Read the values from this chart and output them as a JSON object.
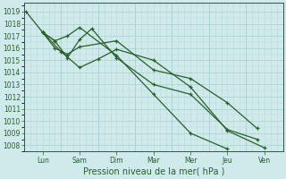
{
  "xlabel": "Pression niveau de la mer( hPa )",
  "bg_color": "#ceeaea",
  "grid_major_color": "#aacece",
  "grid_minor_color": "#bcdada",
  "line_color": "#2a5e2a",
  "ylim": [
    1007.5,
    1019.7
  ],
  "yticks": [
    1008,
    1009,
    1010,
    1011,
    1012,
    1013,
    1014,
    1015,
    1016,
    1017,
    1018,
    1019
  ],
  "day_labels": [
    "Lun",
    "Sam",
    "Dim",
    "Mar",
    "Mer",
    "Jeu",
    "Ven"
  ],
  "xlim": [
    0,
    7
  ],
  "day_x": [
    0.5,
    1.5,
    2.5,
    3.5,
    4.5,
    5.5,
    6.5
  ],
  "series_x": [
    [
      0.05,
      0.5,
      0.83,
      1.17,
      1.5,
      2.5,
      3.5,
      4.5,
      5.5
    ],
    [
      0.5,
      0.83,
      1.17,
      1.5,
      1.83,
      2.5,
      3.5,
      4.5,
      5.5,
      6.3
    ],
    [
      0.5,
      0.83,
      1.17,
      1.5,
      2.5,
      3.5,
      4.5,
      5.5,
      6.3
    ],
    [
      0.5,
      1.0,
      1.5,
      2.0,
      2.5,
      3.5,
      4.5,
      5.5,
      6.5
    ]
  ],
  "series_y": [
    [
      1019.0,
      1017.3,
      1016.6,
      1017.0,
      1017.7,
      1015.4,
      1012.2,
      1009.0,
      1007.7
    ],
    [
      1017.3,
      1016.6,
      1015.2,
      1016.7,
      1017.6,
      1015.2,
      1013.0,
      1012.2,
      1009.3,
      1008.5
    ],
    [
      1017.3,
      1016.0,
      1015.5,
      1016.1,
      1016.6,
      1014.2,
      1013.5,
      1011.5,
      1009.4
    ],
    [
      1017.3,
      1015.7,
      1014.4,
      1015.1,
      1015.9,
      1015.0,
      1012.8,
      1009.2,
      1007.8
    ]
  ],
  "xlabel_fontsize": 7,
  "ytick_fontsize": 5.5,
  "xtick_fontsize": 5.5
}
